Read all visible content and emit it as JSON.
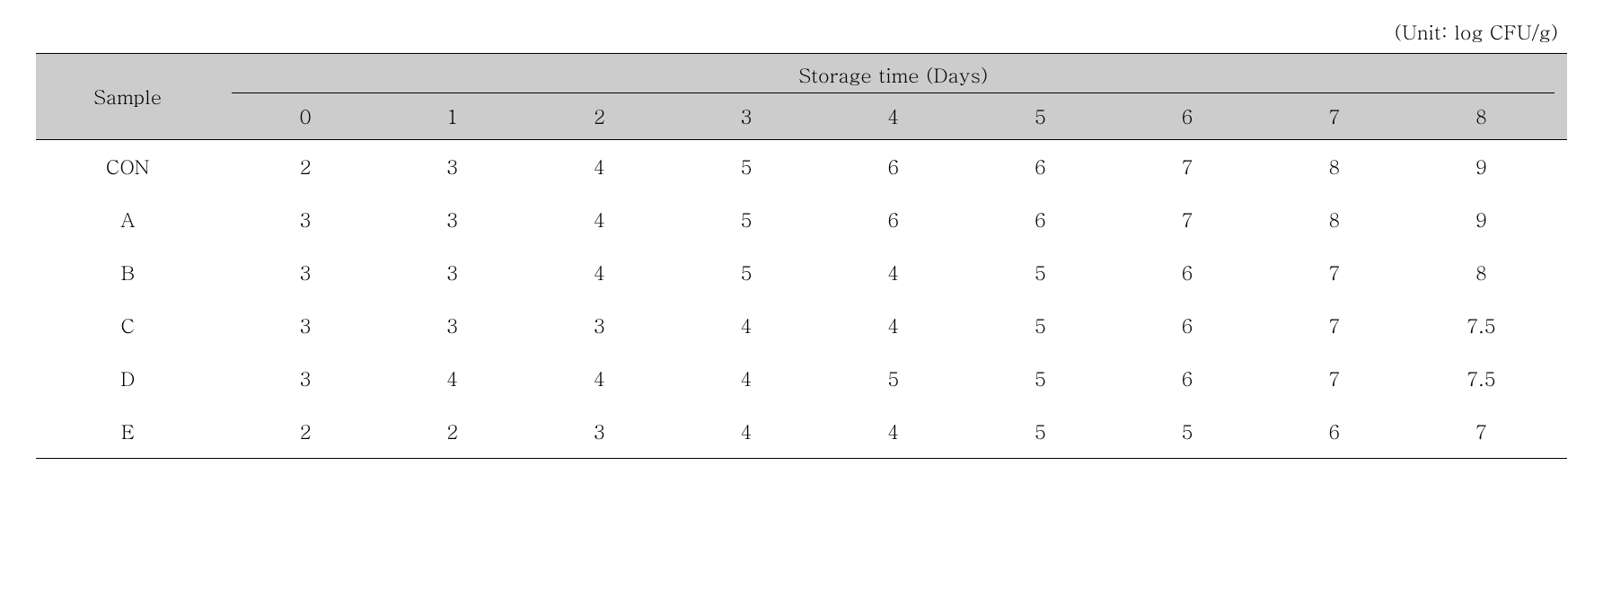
{
  "unit_label": "(Unit: log CFU/g)",
  "table": {
    "type": "table",
    "sample_header": "Sample",
    "group_header": "Storage time (Days)",
    "time_columns": [
      "0",
      "1",
      "2",
      "3",
      "4",
      "5",
      "6",
      "7",
      "8"
    ],
    "rows": [
      {
        "sample": "CON",
        "values": [
          "2",
          "3",
          "4",
          "5",
          "6",
          "6",
          "7",
          "8",
          "9"
        ]
      },
      {
        "sample": "A",
        "values": [
          "3",
          "3",
          "4",
          "5",
          "6",
          "6",
          "7",
          "8",
          "9"
        ]
      },
      {
        "sample": "B",
        "values": [
          "3",
          "3",
          "4",
          "5",
          "4",
          "5",
          "6",
          "7",
          "8"
        ]
      },
      {
        "sample": "C",
        "values": [
          "3",
          "3",
          "3",
          "4",
          "4",
          "5",
          "6",
          "7",
          "7.5"
        ]
      },
      {
        "sample": "D",
        "values": [
          "3",
          "4",
          "4",
          "4",
          "5",
          "5",
          "6",
          "7",
          "7.5"
        ]
      },
      {
        "sample": "E",
        "values": [
          "2",
          "2",
          "3",
          "4",
          "4",
          "5",
          "5",
          "6",
          "7"
        ]
      }
    ],
    "colors": {
      "header_bg": "#cccccc",
      "border": "#000000",
      "text": "#000000",
      "background": "#ffffff"
    },
    "fontsize": 22
  }
}
